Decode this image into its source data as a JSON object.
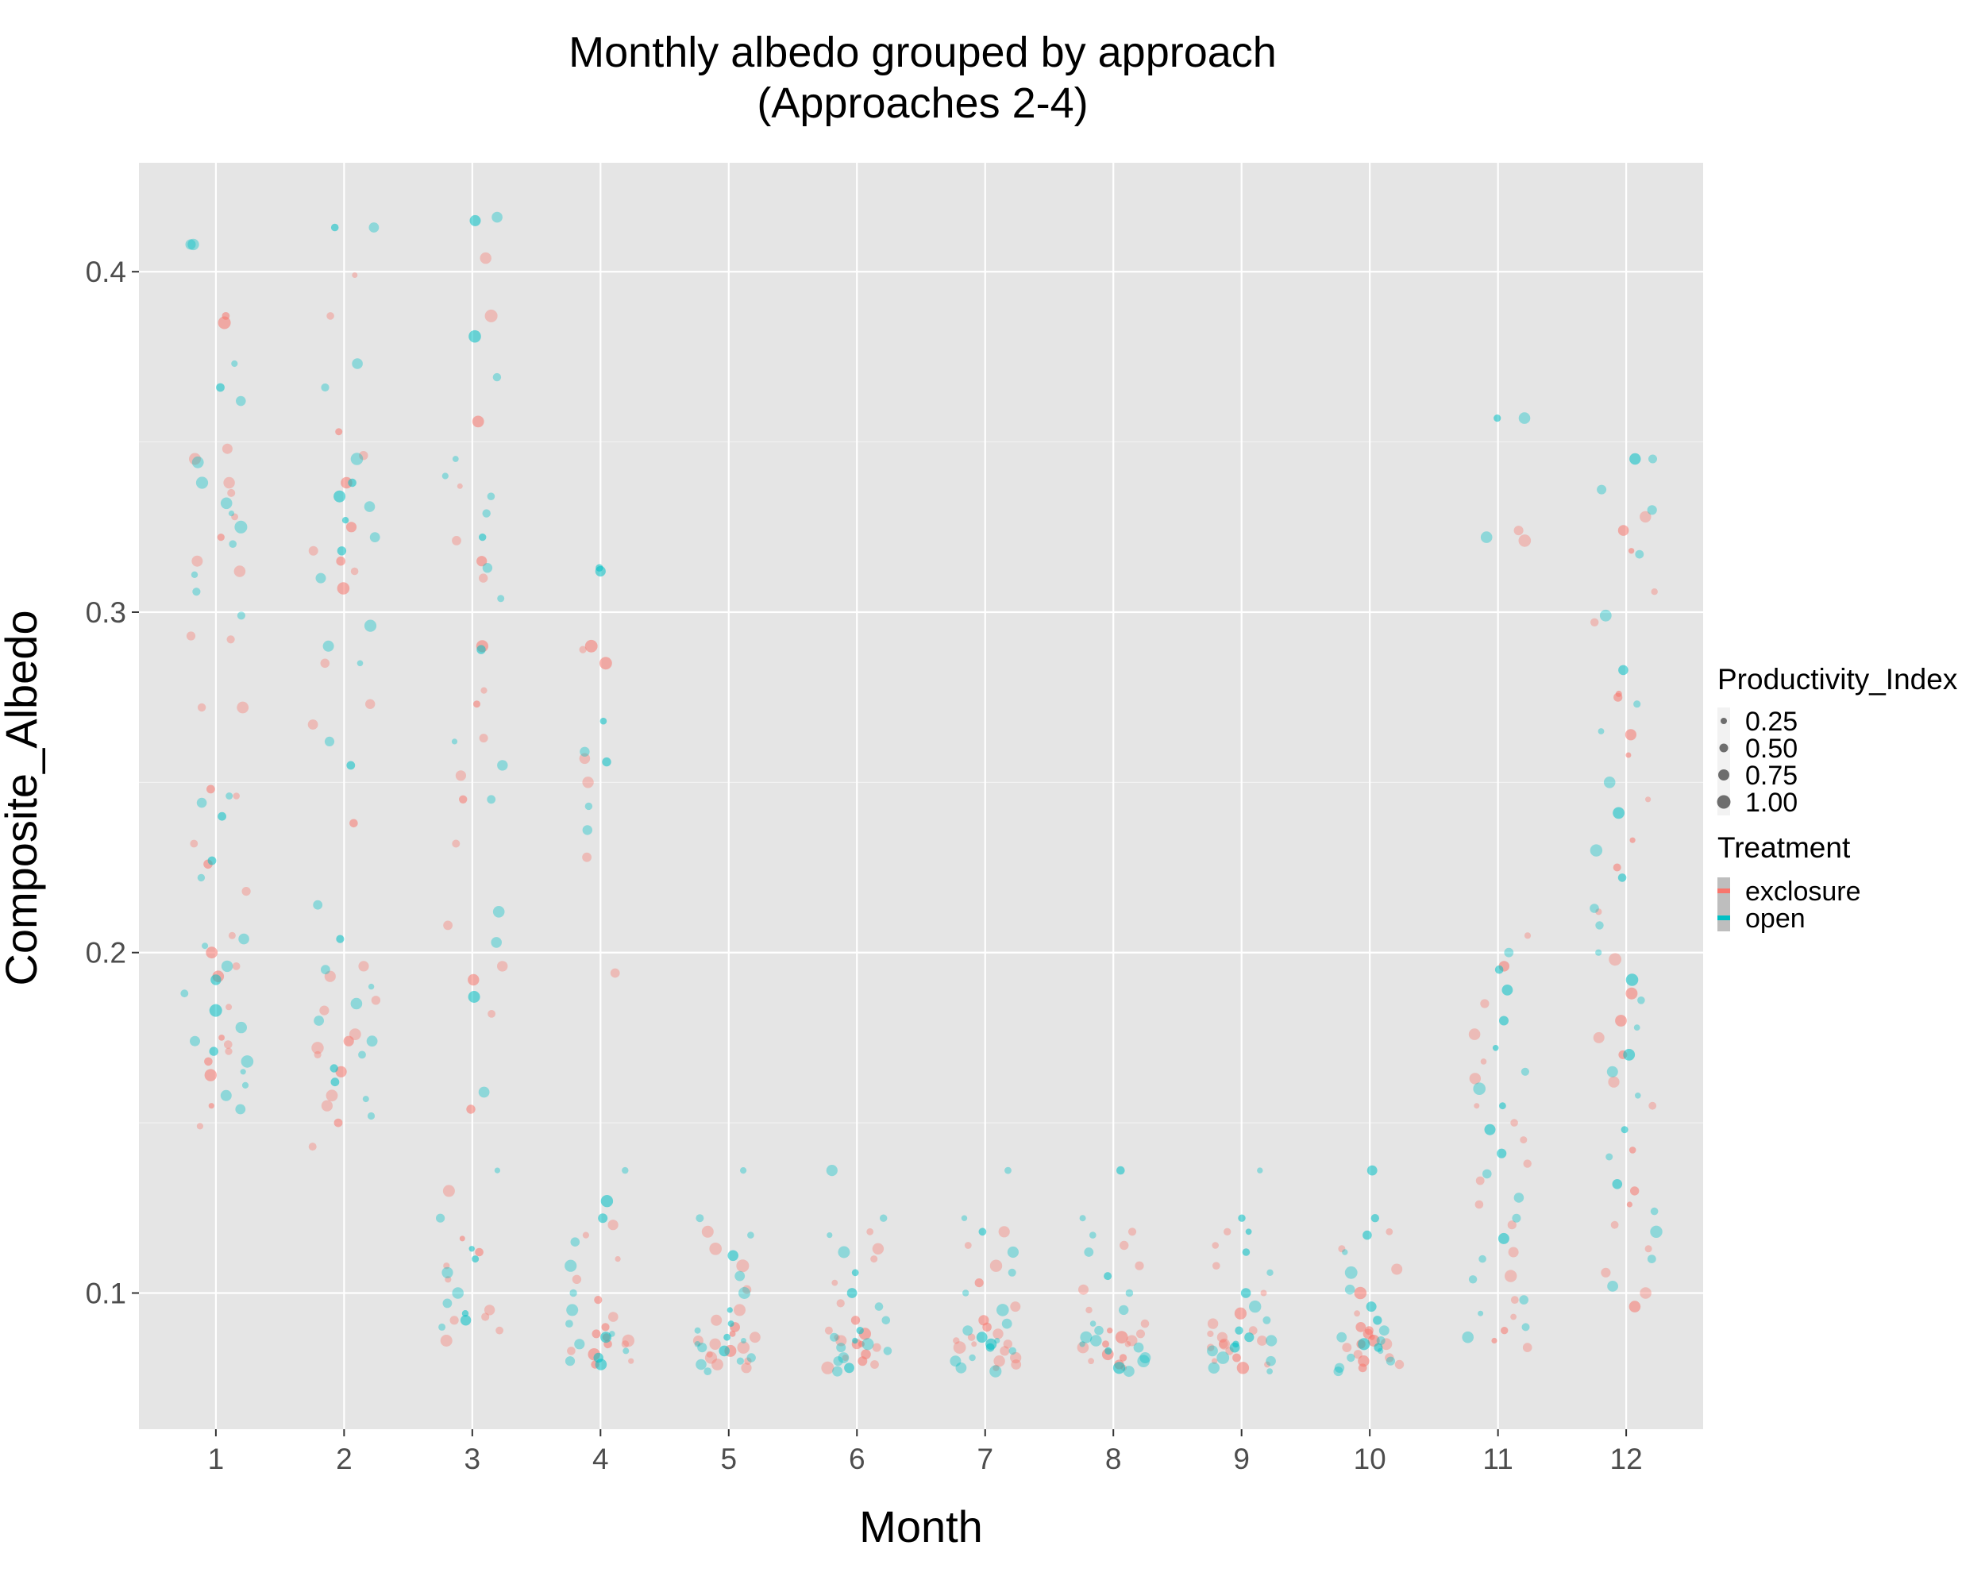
{
  "chart_data": {
    "type": "scatter",
    "title_line1": "Monthly albedo grouped by approach",
    "title_line2": "(Approaches 2-4)",
    "xlabel": "Month",
    "ylabel": "Composite_Albedo",
    "x_ticks": [
      "1",
      "2",
      "3",
      "4",
      "5",
      "6",
      "7",
      "8",
      "9",
      "10",
      "11",
      "12"
    ],
    "y_ticks": [
      "0.1",
      "0.2",
      "0.3",
      "0.4"
    ],
    "xlim": [
      0.4,
      12.6
    ],
    "ylim": [
      0.06,
      0.432
    ],
    "grid": true,
    "legend_position": "right",
    "size_legend": {
      "title": "Productivity_Index",
      "entries": [
        {
          "label": "0.25",
          "value": 0.25
        },
        {
          "label": "0.50",
          "value": 0.5
        },
        {
          "label": "0.75",
          "value": 0.75
        },
        {
          "label": "1.00",
          "value": 1.0
        }
      ]
    },
    "color_legend": {
      "title": "Treatment",
      "entries": [
        {
          "label": "exclosure",
          "color": "#F8766D"
        },
        {
          "label": "open",
          "color": "#00BFC4"
        }
      ]
    },
    "colors": {
      "panel_background": "#E5E5E5",
      "grid": "#FFFFFF",
      "exclosure": "#F8766D",
      "open": "#00BFC4"
    },
    "series": [
      {
        "name": "exclosure",
        "points": [
          {
            "month": 1,
            "values": [
              0.387,
              0.385,
              0.348,
              0.345,
              0.338,
              0.335,
              0.328,
              0.322,
              0.315,
              0.312,
              0.293,
              0.292,
              0.272,
              0.272,
              0.248,
              0.246,
              0.232,
              0.226,
              0.218,
              0.205,
              0.2,
              0.196,
              0.193,
              0.184,
              0.175,
              0.173,
              0.171,
              0.168,
              0.164,
              0.155,
              0.149
            ]
          },
          {
            "month": 2,
            "values": [
              0.399,
              0.387,
              0.353,
              0.346,
              0.338,
              0.325,
              0.318,
              0.315,
              0.312,
              0.307,
              0.285,
              0.273,
              0.267,
              0.238,
              0.196,
              0.193,
              0.186,
              0.183,
              0.176,
              0.174,
              0.172,
              0.17,
              0.165,
              0.158,
              0.155,
              0.15,
              0.143
            ]
          },
          {
            "month": 3,
            "values": [
              0.404,
              0.387,
              0.356,
              0.337,
              0.321,
              0.315,
              0.31,
              0.29,
              0.277,
              0.273,
              0.263,
              0.252,
              0.245,
              0.232,
              0.208,
              0.196,
              0.192,
              0.182,
              0.154,
              0.13,
              0.116,
              0.112,
              0.108,
              0.104,
              0.095,
              0.093,
              0.092,
              0.089,
              0.086
            ]
          },
          {
            "month": 4,
            "values": [
              0.29,
              0.289,
              0.285,
              0.257,
              0.25,
              0.228,
              0.194,
              0.12,
              0.117,
              0.11,
              0.104,
              0.098,
              0.093,
              0.09,
              0.088,
              0.087,
              0.086,
              0.085,
              0.085,
              0.083,
              0.082,
              0.08,
              0.079
            ]
          },
          {
            "month": 5,
            "values": [
              0.118,
              0.113,
              0.108,
              0.101,
              0.095,
              0.092,
              0.09,
              0.088,
              0.087,
              0.086,
              0.085,
              0.084,
              0.083,
              0.082,
              0.081,
              0.08,
              0.079,
              0.078
            ]
          },
          {
            "month": 6,
            "values": [
              0.118,
              0.113,
              0.11,
              0.103,
              0.097,
              0.092,
              0.089,
              0.088,
              0.087,
              0.086,
              0.085,
              0.085,
              0.084,
              0.082,
              0.081,
              0.08,
              0.079,
              0.078
            ]
          },
          {
            "month": 7,
            "values": [
              0.118,
              0.114,
              0.108,
              0.103,
              0.096,
              0.092,
              0.09,
              0.088,
              0.087,
              0.086,
              0.085,
              0.085,
              0.084,
              0.083,
              0.081,
              0.08,
              0.079,
              0.078
            ]
          },
          {
            "month": 8,
            "values": [
              0.118,
              0.114,
              0.108,
              0.101,
              0.095,
              0.091,
              0.089,
              0.088,
              0.087,
              0.086,
              0.085,
              0.085,
              0.084,
              0.082,
              0.081,
              0.08,
              0.079,
              0.078
            ]
          },
          {
            "month": 9,
            "values": [
              0.118,
              0.114,
              0.108,
              0.1,
              0.094,
              0.091,
              0.089,
              0.088,
              0.087,
              0.086,
              0.085,
              0.085,
              0.084,
              0.083,
              0.081,
              0.08,
              0.079,
              0.078
            ]
          },
          {
            "month": 10,
            "values": [
              0.118,
              0.113,
              0.107,
              0.1,
              0.094,
              0.09,
              0.089,
              0.088,
              0.087,
              0.086,
              0.085,
              0.085,
              0.084,
              0.082,
              0.081,
              0.08,
              0.079,
              0.078
            ]
          },
          {
            "month": 11,
            "values": [
              0.324,
              0.321,
              0.205,
              0.196,
              0.185,
              0.176,
              0.168,
              0.163,
              0.155,
              0.15,
              0.145,
              0.138,
              0.133,
              0.126,
              0.12,
              0.112,
              0.105,
              0.098,
              0.093,
              0.089,
              0.086,
              0.084
            ]
          },
          {
            "month": 12,
            "values": [
              0.328,
              0.324,
              0.318,
              0.306,
              0.297,
              0.276,
              0.275,
              0.264,
              0.258,
              0.245,
              0.233,
              0.225,
              0.212,
              0.198,
              0.188,
              0.18,
              0.175,
              0.17,
              0.162,
              0.155,
              0.142,
              0.13,
              0.126,
              0.12,
              0.113,
              0.106,
              0.1,
              0.096
            ]
          }
        ]
      },
      {
        "name": "open",
        "points": [
          {
            "month": 1,
            "values": [
              0.408,
              0.408,
              0.373,
              0.366,
              0.362,
              0.344,
              0.338,
              0.332,
              0.329,
              0.325,
              0.32,
              0.311,
              0.306,
              0.299,
              0.246,
              0.244,
              0.24,
              0.227,
              0.222,
              0.204,
              0.202,
              0.196,
              0.192,
              0.188,
              0.183,
              0.178,
              0.174,
              0.171,
              0.168,
              0.165,
              0.161,
              0.158,
              0.154
            ]
          },
          {
            "month": 2,
            "values": [
              0.413,
              0.413,
              0.373,
              0.366,
              0.345,
              0.338,
              0.334,
              0.331,
              0.327,
              0.322,
              0.318,
              0.31,
              0.296,
              0.29,
              0.285,
              0.262,
              0.255,
              0.214,
              0.204,
              0.195,
              0.19,
              0.185,
              0.18,
              0.174,
              0.17,
              0.166,
              0.162,
              0.157,
              0.152
            ]
          },
          {
            "month": 3,
            "values": [
              0.416,
              0.415,
              0.381,
              0.369,
              0.345,
              0.34,
              0.334,
              0.329,
              0.322,
              0.313,
              0.304,
              0.289,
              0.262,
              0.255,
              0.245,
              0.212,
              0.203,
              0.187,
              0.159,
              0.136,
              0.122,
              0.113,
              0.11,
              0.106,
              0.1,
              0.097,
              0.094,
              0.092,
              0.09
            ]
          },
          {
            "month": 4,
            "values": [
              0.313,
              0.312,
              0.268,
              0.259,
              0.256,
              0.243,
              0.236,
              0.136,
              0.127,
              0.122,
              0.115,
              0.108,
              0.1,
              0.095,
              0.091,
              0.088,
              0.087,
              0.085,
              0.083,
              0.081,
              0.08,
              0.079
            ]
          },
          {
            "month": 5,
            "values": [
              0.136,
              0.122,
              0.117,
              0.111,
              0.105,
              0.1,
              0.095,
              0.091,
              0.089,
              0.087,
              0.086,
              0.085,
              0.084,
              0.083,
              0.081,
              0.08,
              0.079,
              0.077
            ]
          },
          {
            "month": 6,
            "values": [
              0.136,
              0.122,
              0.117,
              0.112,
              0.106,
              0.1,
              0.096,
              0.092,
              0.089,
              0.087,
              0.086,
              0.085,
              0.084,
              0.083,
              0.081,
              0.08,
              0.078,
              0.077
            ]
          },
          {
            "month": 7,
            "values": [
              0.136,
              0.122,
              0.118,
              0.112,
              0.106,
              0.1,
              0.095,
              0.091,
              0.089,
              0.087,
              0.086,
              0.085,
              0.084,
              0.083,
              0.081,
              0.08,
              0.078,
              0.077
            ]
          },
          {
            "month": 8,
            "values": [
              0.136,
              0.122,
              0.117,
              0.112,
              0.105,
              0.1,
              0.095,
              0.091,
              0.089,
              0.087,
              0.086,
              0.085,
              0.084,
              0.083,
              0.081,
              0.08,
              0.078,
              0.077
            ]
          },
          {
            "month": 9,
            "values": [
              0.136,
              0.122,
              0.118,
              0.112,
              0.106,
              0.1,
              0.096,
              0.092,
              0.089,
              0.087,
              0.086,
              0.085,
              0.084,
              0.083,
              0.081,
              0.08,
              0.078,
              0.077
            ]
          },
          {
            "month": 10,
            "values": [
              0.136,
              0.122,
              0.117,
              0.112,
              0.106,
              0.101,
              0.096,
              0.092,
              0.089,
              0.087,
              0.086,
              0.085,
              0.084,
              0.083,
              0.081,
              0.08,
              0.078,
              0.077
            ]
          },
          {
            "month": 11,
            "values": [
              0.357,
              0.357,
              0.322,
              0.2,
              0.195,
              0.189,
              0.18,
              0.172,
              0.165,
              0.16,
              0.155,
              0.148,
              0.141,
              0.135,
              0.128,
              0.122,
              0.116,
              0.11,
              0.104,
              0.098,
              0.094,
              0.09,
              0.087
            ]
          },
          {
            "month": 12,
            "values": [
              0.345,
              0.345,
              0.336,
              0.33,
              0.317,
              0.299,
              0.283,
              0.273,
              0.265,
              0.25,
              0.241,
              0.23,
              0.222,
              0.213,
              0.208,
              0.2,
              0.192,
              0.186,
              0.178,
              0.17,
              0.165,
              0.158,
              0.148,
              0.14,
              0.132,
              0.124,
              0.118,
              0.11,
              0.102
            ]
          }
        ]
      }
    ]
  }
}
